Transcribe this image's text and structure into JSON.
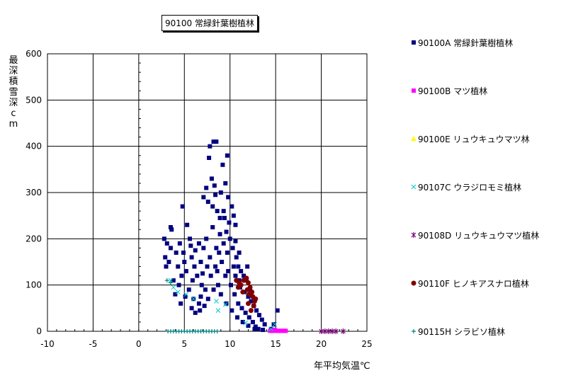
{
  "chart_data": {
    "type": "scatter",
    "title": "90100 常緑針葉樹植林",
    "xlabel": "年平均気温℃",
    "ylabel": "最深積雪深cm",
    "xlim": [
      -10,
      25
    ],
    "ylim": [
      0,
      600
    ],
    "xticks": [
      "-10",
      "-5",
      "0",
      "5",
      "10",
      "15",
      "20",
      "25"
    ],
    "yticks": [
      "0",
      "100",
      "200",
      "300",
      "400",
      "500",
      "600"
    ],
    "grid": true,
    "legend_position": "right",
    "series": [
      {
        "name": "90100A 常緑針葉樹植林",
        "color": "#000080",
        "marker": "square",
        "points": [
          [
            3.5,
            225
          ],
          [
            3.6,
            220
          ],
          [
            2.8,
            200
          ],
          [
            3.1,
            190
          ],
          [
            2.9,
            160
          ],
          [
            3.5,
            180
          ],
          [
            4.5,
            190
          ],
          [
            4.1,
            170
          ],
          [
            3.3,
            150
          ],
          [
            3.0,
            140
          ],
          [
            4.8,
            270
          ],
          [
            5.3,
            230
          ],
          [
            5.6,
            200
          ],
          [
            4.9,
            170
          ],
          [
            5.8,
            160
          ],
          [
            6.2,
            175
          ],
          [
            6.8,
            150
          ],
          [
            7.1,
            180
          ],
          [
            7.5,
            140
          ],
          [
            7.8,
            160
          ],
          [
            5.2,
            130
          ],
          [
            4.7,
            120
          ],
          [
            5.9,
            110
          ],
          [
            6.4,
            120
          ],
          [
            6.9,
            100
          ],
          [
            7.3,
            90
          ],
          [
            5.5,
            90
          ],
          [
            6.0,
            70
          ],
          [
            6.6,
            60
          ],
          [
            5.8,
            50
          ],
          [
            4.4,
            100
          ],
          [
            4.0,
            80
          ],
          [
            4.6,
            60
          ],
          [
            5.1,
            75
          ],
          [
            3.8,
            110
          ],
          [
            7.8,
            400
          ],
          [
            8.2,
            410
          ],
          [
            8.5,
            410
          ],
          [
            7.7,
            375
          ],
          [
            8.0,
            330
          ],
          [
            8.3,
            315
          ],
          [
            7.4,
            310
          ],
          [
            7.1,
            290
          ],
          [
            7.6,
            280
          ],
          [
            8.4,
            295
          ],
          [
            8.1,
            270
          ],
          [
            8.6,
            260
          ],
          [
            8.9,
            245
          ],
          [
            9.4,
            245
          ],
          [
            9.9,
            235
          ],
          [
            9.7,
            380
          ],
          [
            9.2,
            360
          ],
          [
            9.5,
            320
          ],
          [
            9.0,
            300
          ],
          [
            9.8,
            290
          ],
          [
            10.2,
            270
          ],
          [
            10.4,
            250
          ],
          [
            10.6,
            230
          ],
          [
            9.6,
            215
          ],
          [
            10.0,
            200
          ],
          [
            9.3,
            190
          ],
          [
            8.8,
            170
          ],
          [
            9.1,
            150
          ],
          [
            8.6,
            130
          ],
          [
            9.5,
            120
          ],
          [
            10.3,
            180
          ],
          [
            10.7,
            160
          ],
          [
            10.9,
            140
          ],
          [
            11.2,
            130
          ],
          [
            11.5,
            120
          ],
          [
            10.8,
            110
          ],
          [
            11.1,
            95
          ],
          [
            11.6,
            85
          ],
          [
            12.0,
            75
          ],
          [
            12.3,
            65
          ],
          [
            12.6,
            55
          ],
          [
            12.9,
            45
          ],
          [
            13.2,
            35
          ],
          [
            13.5,
            25
          ],
          [
            13.8,
            15
          ],
          [
            10.1,
            100
          ],
          [
            10.5,
            80
          ],
          [
            10.9,
            60
          ],
          [
            11.3,
            50
          ],
          [
            11.7,
            40
          ],
          [
            12.1,
            30
          ],
          [
            12.5,
            20
          ],
          [
            12.8,
            10
          ],
          [
            13.1,
            5
          ],
          [
            11.9,
            140
          ],
          [
            11.0,
            170
          ],
          [
            10.6,
            195
          ],
          [
            8.7,
            100
          ],
          [
            8.2,
            90
          ],
          [
            7.6,
            70
          ],
          [
            7.2,
            55
          ],
          [
            6.7,
            45
          ],
          [
            6.2,
            40
          ],
          [
            6.8,
            75
          ],
          [
            7.9,
            120
          ],
          [
            9.0,
            80
          ],
          [
            9.6,
            60
          ],
          [
            10.2,
            45
          ],
          [
            10.8,
            30
          ],
          [
            11.4,
            20
          ],
          [
            12.0,
            12
          ],
          [
            12.7,
            5
          ],
          [
            13.6,
            3
          ],
          [
            14.5,
            5
          ],
          [
            15.2,
            45
          ],
          [
            14.8,
            15
          ],
          [
            8.1,
            225
          ],
          [
            8.9,
            210
          ],
          [
            9.7,
            170
          ],
          [
            10.4,
            140
          ],
          [
            11.0,
            110
          ],
          [
            9.3,
            260
          ],
          [
            8.5,
            180
          ],
          [
            7.4,
            200
          ],
          [
            6.6,
            190
          ],
          [
            5.7,
            185
          ],
          [
            5.0,
            150
          ],
          [
            4.3,
            140
          ],
          [
            6.1,
            140
          ],
          [
            7.0,
            125
          ],
          [
            8.4,
            140
          ],
          [
            9.8,
            130
          ],
          [
            10.6,
            120
          ],
          [
            11.8,
            110
          ],
          [
            12.2,
            90
          ]
        ]
      },
      {
        "name": "90100B マツ植林",
        "color": "#ff00ff",
        "marker": "square",
        "points": [
          [
            14.4,
            1
          ],
          [
            14.7,
            1
          ],
          [
            15.0,
            1
          ],
          [
            15.3,
            1
          ],
          [
            15.6,
            1
          ],
          [
            15.9,
            1
          ],
          [
            16.1,
            1
          ],
          [
            14.9,
            3
          ]
        ]
      },
      {
        "name": "90100E リュウキュウマツ林",
        "color": "#ffff00",
        "marker": "triangle",
        "points": []
      },
      {
        "name": "90107C ウラジロモミ植林",
        "color": "#00cccc",
        "marker": "x",
        "points": [
          [
            3.5,
            110
          ],
          [
            3.8,
            95
          ],
          [
            4.3,
            85
          ],
          [
            5.2,
            80
          ],
          [
            6.0,
            70
          ],
          [
            8.5,
            65
          ],
          [
            9.5,
            58
          ],
          [
            8.7,
            45
          ],
          [
            11.7,
            18
          ],
          [
            14.9,
            15
          ],
          [
            14.5,
            5
          ]
        ]
      },
      {
        "name": "90108D リュウキュウマツ植林",
        "color": "#800080",
        "marker": "asterisk",
        "points": [
          [
            20.0,
            0
          ],
          [
            20.4,
            0
          ],
          [
            20.8,
            0
          ],
          [
            21.2,
            0
          ],
          [
            21.6,
            0
          ],
          [
            22.4,
            0
          ]
        ]
      },
      {
        "name": "90110F ヒノキアスナロ植林",
        "color": "#800000",
        "marker": "circle",
        "points": [
          [
            10.7,
            110
          ],
          [
            10.9,
            95
          ],
          [
            11.2,
            100
          ],
          [
            11.5,
            110
          ],
          [
            11.8,
            115
          ],
          [
            12.0,
            105
          ],
          [
            12.2,
            95
          ],
          [
            12.4,
            85
          ],
          [
            12.5,
            75
          ],
          [
            12.7,
            65
          ],
          [
            12.6,
            55
          ],
          [
            12.3,
            45
          ],
          [
            12.1,
            80
          ],
          [
            11.9,
            90
          ],
          [
            11.4,
            85
          ],
          [
            11.0,
            105
          ],
          [
            12.8,
            70
          ],
          [
            12.0,
            60
          ]
        ]
      },
      {
        "name": "90115H シラビソ植林",
        "color": "#008080",
        "marker": "plus",
        "points": [
          [
            3.2,
            0
          ],
          [
            3.5,
            0
          ],
          [
            3.8,
            0
          ],
          [
            4.1,
            0
          ],
          [
            4.4,
            0
          ],
          [
            4.7,
            0
          ],
          [
            5.0,
            0
          ],
          [
            5.3,
            0
          ],
          [
            5.6,
            0
          ],
          [
            5.9,
            0
          ],
          [
            6.2,
            0
          ],
          [
            6.5,
            0
          ],
          [
            6.8,
            0
          ],
          [
            7.1,
            0
          ],
          [
            7.4,
            0
          ],
          [
            7.7,
            0
          ],
          [
            8.0,
            0
          ],
          [
            8.3,
            0
          ],
          [
            8.6,
            0
          ],
          [
            3.1,
            110
          ],
          [
            3.5,
            105
          ]
        ]
      }
    ]
  }
}
